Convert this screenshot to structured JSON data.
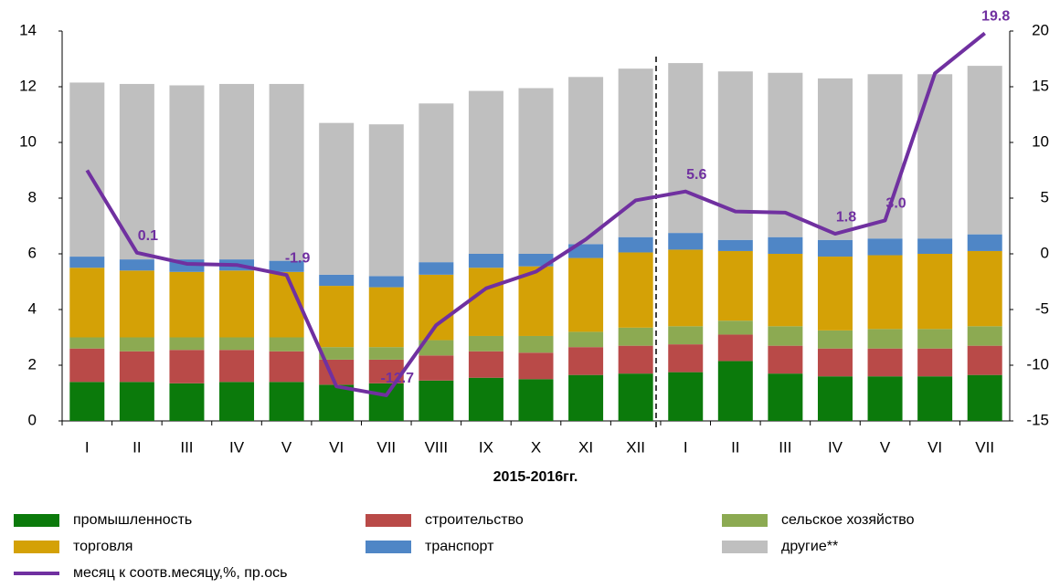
{
  "chart_data": {
    "type": "bar",
    "xlabel": "2015-2016гг.",
    "categories": [
      "I",
      "II",
      "III",
      "IV",
      "V",
      "VI",
      "VII",
      "VIII",
      "IX",
      "X",
      "XI",
      "XII",
      "I",
      "II",
      "III",
      "IV",
      "V",
      "VI",
      "VII"
    ],
    "series": [
      {
        "name": "промышленность",
        "color": "#0b7a0b",
        "values": [
          1.4,
          1.4,
          1.35,
          1.4,
          1.4,
          1.3,
          1.35,
          1.45,
          1.55,
          1.5,
          1.65,
          1.7,
          1.75,
          2.15,
          1.7,
          1.6,
          1.6,
          1.6,
          1.65
        ]
      },
      {
        "name": "строительство",
        "color": "#b94a48",
        "values": [
          1.2,
          1.1,
          1.2,
          1.15,
          1.1,
          0.9,
          0.85,
          0.9,
          0.95,
          0.95,
          1.0,
          1.0,
          1.0,
          0.95,
          1.0,
          1.0,
          1.0,
          1.0,
          1.05
        ]
      },
      {
        "name": "сельское хозяйство",
        "color": "#8caa52",
        "values": [
          0.4,
          0.5,
          0.45,
          0.45,
          0.5,
          0.45,
          0.45,
          0.55,
          0.55,
          0.6,
          0.55,
          0.65,
          0.65,
          0.5,
          0.7,
          0.65,
          0.7,
          0.7,
          0.7
        ]
      },
      {
        "name": "торговля",
        "color": "#d4a106",
        "values": [
          2.5,
          2.4,
          2.35,
          2.4,
          2.35,
          2.2,
          2.15,
          2.35,
          2.45,
          2.5,
          2.65,
          2.7,
          2.75,
          2.5,
          2.6,
          2.65,
          2.65,
          2.7,
          2.7
        ]
      },
      {
        "name": "транспорт",
        "color": "#4f86c6",
        "values": [
          0.4,
          0.4,
          0.45,
          0.4,
          0.4,
          0.4,
          0.4,
          0.45,
          0.5,
          0.45,
          0.5,
          0.55,
          0.6,
          0.4,
          0.6,
          0.6,
          0.6,
          0.55,
          0.6
        ]
      },
      {
        "name": "другие**",
        "color": "#bfbfbf",
        "values": [
          6.25,
          6.3,
          6.25,
          6.3,
          6.35,
          5.45,
          5.45,
          5.7,
          5.85,
          5.95,
          6.0,
          6.05,
          6.1,
          6.05,
          5.9,
          5.8,
          5.9,
          5.9,
          6.05
        ]
      },
      {
        "name": "месяц к соотв.месяцу,%, пр.ось",
        "type": "line",
        "axis": "y2",
        "color": "#7030a0",
        "values": [
          7.5,
          0.1,
          -0.9,
          -1.0,
          -1.9,
          -11.9,
          -12.7,
          -6.4,
          -3.1,
          -1.6,
          1.3,
          4.8,
          5.6,
          3.8,
          3.7,
          1.8,
          3.0,
          16.2,
          19.8
        ],
        "value_labels": [
          null,
          "0.1",
          null,
          null,
          "-1.9",
          null,
          "-12.7",
          null,
          null,
          null,
          null,
          null,
          "5.6",
          null,
          null,
          "1.8",
          "3.0",
          null,
          "19.8"
        ]
      }
    ],
    "stacked": true,
    "ylim": [
      0,
      14
    ],
    "yticks": [
      0,
      2,
      4,
      6,
      8,
      10,
      12,
      14
    ],
    "y2lim": [
      -15,
      20
    ],
    "y2ticks": [
      -15,
      -10,
      -5,
      0,
      5,
      10,
      15,
      20
    ]
  }
}
